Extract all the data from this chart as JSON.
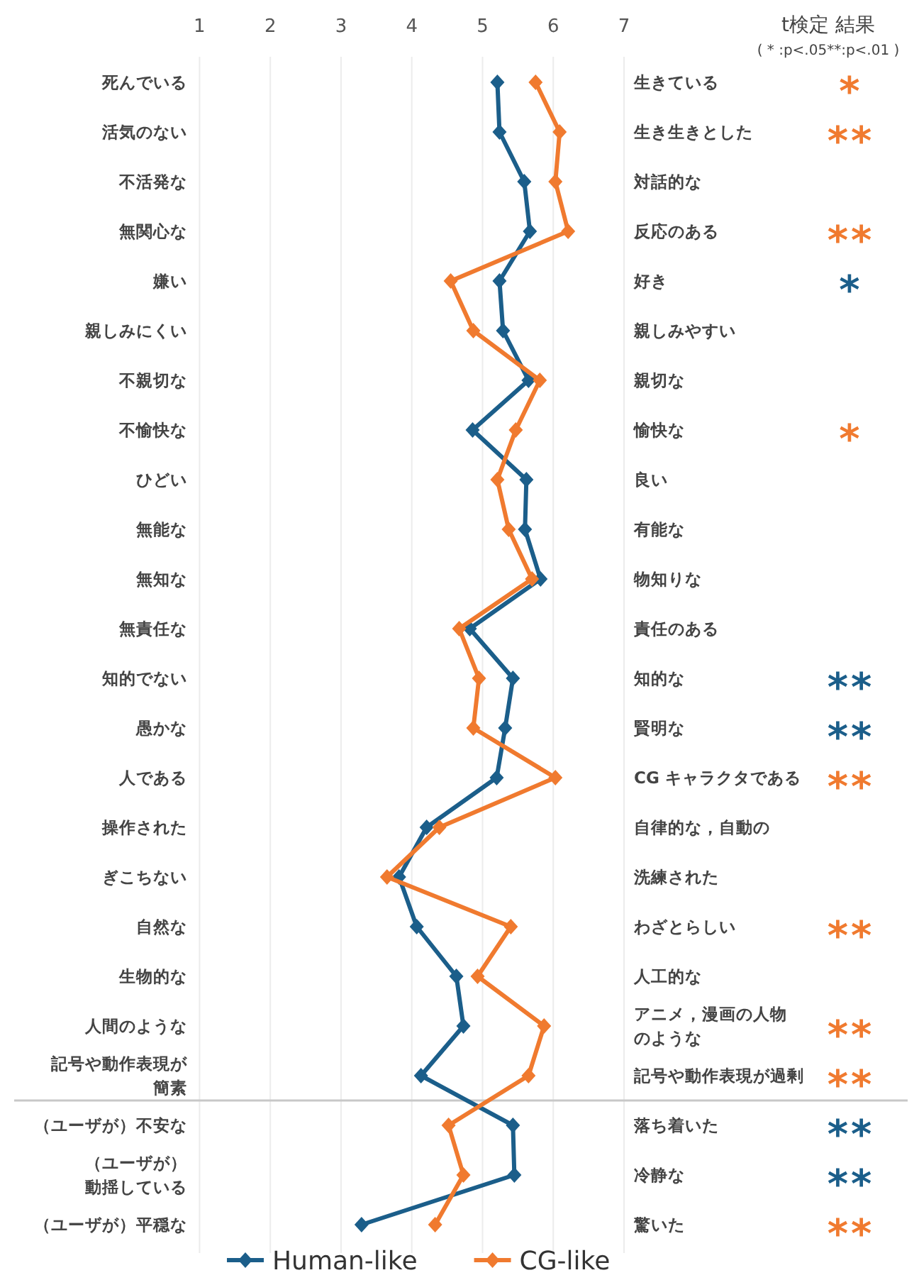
{
  "chart_data": {
    "type": "line",
    "orientation": "horizontal",
    "categories": [
      "死んでいる",
      "活気のない",
      "不活発な",
      "無関心な",
      "嫌い",
      "親しみにくい",
      "不親切な",
      "不愉快な",
      "ひどい",
      "無能な",
      "無知な",
      "無責任な",
      "知的でない",
      "愚かな",
      "人である",
      "操作された",
      "ぎこちない",
      "自然な",
      "生物的な",
      "人間のような",
      "記号や動作表現が簡素",
      "（ユーザが）不安な",
      "（ユーザが）動揺している",
      "（ユーザが）平穏な"
    ],
    "y2_categories": [
      "生きている",
      "生き生きとした",
      "対話的な",
      "反応のある",
      "好き",
      "親しみやすい",
      "親切な",
      "愉快な",
      "良い",
      "有能な",
      "物知りな",
      "責任のある",
      "知的な",
      "賢明な",
      "CG キャラクタである",
      "自律的な，自動の",
      "洗練された",
      "わざとらしい",
      "人工的な",
      "アニメ，漫画の人物のような",
      "記号や動作表現が過剰",
      "落ち着いた",
      "冷静な",
      "驚いた"
    ],
    "series": [
      {
        "name": "Human-like",
        "color": "#1b5e8a",
        "values": [
          5.21,
          5.24,
          5.59,
          5.67,
          5.24,
          5.29,
          5.65,
          4.86,
          5.62,
          5.6,
          5.82,
          4.82,
          5.43,
          5.32,
          5.2,
          4.21,
          3.82,
          4.07,
          4.63,
          4.73,
          4.13,
          5.43,
          5.45,
          3.29
        ]
      },
      {
        "name": "CG-like",
        "color": "#f07a2f",
        "values": [
          5.75,
          6.09,
          6.03,
          6.21,
          4.55,
          4.87,
          5.81,
          5.47,
          5.21,
          5.37,
          5.7,
          4.67,
          4.95,
          4.87,
          6.03,
          4.39,
          3.65,
          5.4,
          4.93,
          5.87,
          5.65,
          4.52,
          4.73,
          4.33
        ]
      }
    ],
    "xlim": [
      1,
      7
    ],
    "xticks": [
      1,
      2,
      3,
      4,
      5,
      6,
      7
    ],
    "grid": "x",
    "marker": "diamond",
    "line_style": "solid",
    "legend": "bottom",
    "annotations": [
      "t検定 結果",
      "( * :p<.05**:p<.01 )",
      "*",
      "**",
      null,
      "**",
      "*",
      null,
      null,
      "*",
      null,
      null,
      null,
      null,
      "**",
      "**",
      "**",
      null,
      null,
      "**",
      null,
      "**",
      "**",
      "**",
      "**",
      "**"
    ],
    "ref_lines": [
      {
        "axis": "y",
        "value": "（ユーザが）不安な",
        "color": "#c8c8c8"
      }
    ]
  }
}
